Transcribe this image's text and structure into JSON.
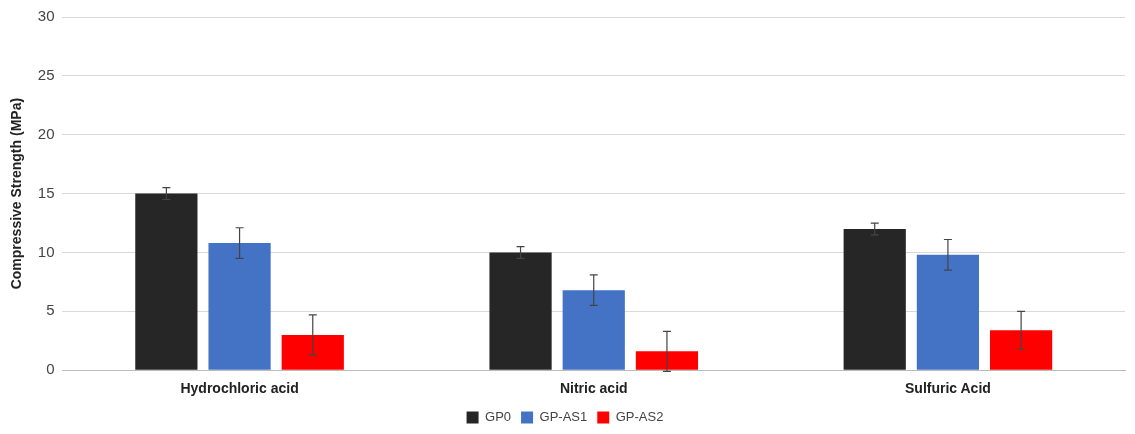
{
  "chart_data": {
    "type": "bar",
    "ylabel": "Compressive Strength (MPa)",
    "categories": [
      "Hydrochloric acid",
      "Nitric acid",
      "Sulfuric Acid"
    ],
    "series": [
      {
        "name": "GP0",
        "color": "#262626",
        "values": [
          15.0,
          10.0,
          12.0
        ],
        "errors": [
          0.5,
          0.5,
          0.5
        ]
      },
      {
        "name": "GP-AS1",
        "color": "#4472c4",
        "values": [
          10.8,
          6.8,
          9.8
        ],
        "errors": [
          1.3,
          1.3,
          1.3
        ]
      },
      {
        "name": "GP-AS2",
        "color": "#ff0000",
        "values": [
          3.0,
          1.6,
          3.4
        ],
        "errors": [
          1.7,
          1.7,
          1.6
        ]
      }
    ],
    "ylim": [
      0,
      30
    ],
    "yticks": [
      0,
      5,
      10,
      15,
      20,
      25,
      30
    ],
    "grid": "y",
    "legend": "bottom"
  }
}
